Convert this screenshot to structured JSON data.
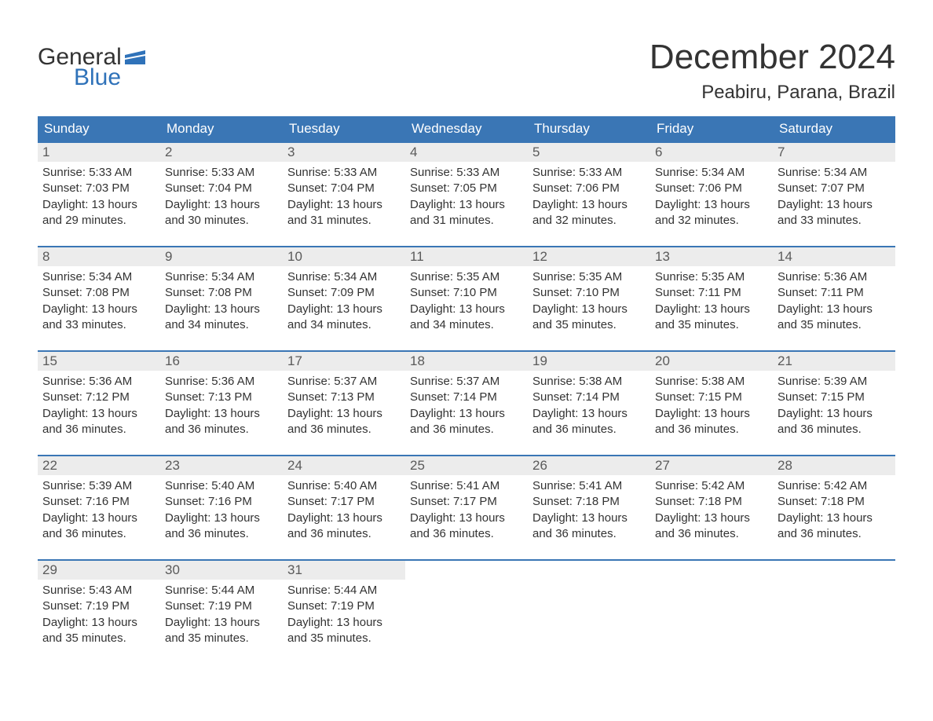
{
  "logo": {
    "word1": "General",
    "word2": "Blue",
    "flag_color": "#2f72b9"
  },
  "title": "December 2024",
  "location": "Peabiru, Parana, Brazil",
  "colors": {
    "header_bg": "#3a76b5",
    "header_text": "#ffffff",
    "daynum_bg": "#ececec",
    "daynum_text": "#5a5a5a",
    "body_text": "#333333",
    "rule": "#3a76b5",
    "logo_accent": "#2f72b9",
    "page_bg": "#ffffff"
  },
  "weekdays": [
    "Sunday",
    "Monday",
    "Tuesday",
    "Wednesday",
    "Thursday",
    "Friday",
    "Saturday"
  ],
  "weeks": [
    [
      {
        "n": "1",
        "sunrise": "Sunrise: 5:33 AM",
        "sunset": "Sunset: 7:03 PM",
        "day1": "Daylight: 13 hours",
        "day2": "and 29 minutes."
      },
      {
        "n": "2",
        "sunrise": "Sunrise: 5:33 AM",
        "sunset": "Sunset: 7:04 PM",
        "day1": "Daylight: 13 hours",
        "day2": "and 30 minutes."
      },
      {
        "n": "3",
        "sunrise": "Sunrise: 5:33 AM",
        "sunset": "Sunset: 7:04 PM",
        "day1": "Daylight: 13 hours",
        "day2": "and 31 minutes."
      },
      {
        "n": "4",
        "sunrise": "Sunrise: 5:33 AM",
        "sunset": "Sunset: 7:05 PM",
        "day1": "Daylight: 13 hours",
        "day2": "and 31 minutes."
      },
      {
        "n": "5",
        "sunrise": "Sunrise: 5:33 AM",
        "sunset": "Sunset: 7:06 PM",
        "day1": "Daylight: 13 hours",
        "day2": "and 32 minutes."
      },
      {
        "n": "6",
        "sunrise": "Sunrise: 5:34 AM",
        "sunset": "Sunset: 7:06 PM",
        "day1": "Daylight: 13 hours",
        "day2": "and 32 minutes."
      },
      {
        "n": "7",
        "sunrise": "Sunrise: 5:34 AM",
        "sunset": "Sunset: 7:07 PM",
        "day1": "Daylight: 13 hours",
        "day2": "and 33 minutes."
      }
    ],
    [
      {
        "n": "8",
        "sunrise": "Sunrise: 5:34 AM",
        "sunset": "Sunset: 7:08 PM",
        "day1": "Daylight: 13 hours",
        "day2": "and 33 minutes."
      },
      {
        "n": "9",
        "sunrise": "Sunrise: 5:34 AM",
        "sunset": "Sunset: 7:08 PM",
        "day1": "Daylight: 13 hours",
        "day2": "and 34 minutes."
      },
      {
        "n": "10",
        "sunrise": "Sunrise: 5:34 AM",
        "sunset": "Sunset: 7:09 PM",
        "day1": "Daylight: 13 hours",
        "day2": "and 34 minutes."
      },
      {
        "n": "11",
        "sunrise": "Sunrise: 5:35 AM",
        "sunset": "Sunset: 7:10 PM",
        "day1": "Daylight: 13 hours",
        "day2": "and 34 minutes."
      },
      {
        "n": "12",
        "sunrise": "Sunrise: 5:35 AM",
        "sunset": "Sunset: 7:10 PM",
        "day1": "Daylight: 13 hours",
        "day2": "and 35 minutes."
      },
      {
        "n": "13",
        "sunrise": "Sunrise: 5:35 AM",
        "sunset": "Sunset: 7:11 PM",
        "day1": "Daylight: 13 hours",
        "day2": "and 35 minutes."
      },
      {
        "n": "14",
        "sunrise": "Sunrise: 5:36 AM",
        "sunset": "Sunset: 7:11 PM",
        "day1": "Daylight: 13 hours",
        "day2": "and 35 minutes."
      }
    ],
    [
      {
        "n": "15",
        "sunrise": "Sunrise: 5:36 AM",
        "sunset": "Sunset: 7:12 PM",
        "day1": "Daylight: 13 hours",
        "day2": "and 36 minutes."
      },
      {
        "n": "16",
        "sunrise": "Sunrise: 5:36 AM",
        "sunset": "Sunset: 7:13 PM",
        "day1": "Daylight: 13 hours",
        "day2": "and 36 minutes."
      },
      {
        "n": "17",
        "sunrise": "Sunrise: 5:37 AM",
        "sunset": "Sunset: 7:13 PM",
        "day1": "Daylight: 13 hours",
        "day2": "and 36 minutes."
      },
      {
        "n": "18",
        "sunrise": "Sunrise: 5:37 AM",
        "sunset": "Sunset: 7:14 PM",
        "day1": "Daylight: 13 hours",
        "day2": "and 36 minutes."
      },
      {
        "n": "19",
        "sunrise": "Sunrise: 5:38 AM",
        "sunset": "Sunset: 7:14 PM",
        "day1": "Daylight: 13 hours",
        "day2": "and 36 minutes."
      },
      {
        "n": "20",
        "sunrise": "Sunrise: 5:38 AM",
        "sunset": "Sunset: 7:15 PM",
        "day1": "Daylight: 13 hours",
        "day2": "and 36 minutes."
      },
      {
        "n": "21",
        "sunrise": "Sunrise: 5:39 AM",
        "sunset": "Sunset: 7:15 PM",
        "day1": "Daylight: 13 hours",
        "day2": "and 36 minutes."
      }
    ],
    [
      {
        "n": "22",
        "sunrise": "Sunrise: 5:39 AM",
        "sunset": "Sunset: 7:16 PM",
        "day1": "Daylight: 13 hours",
        "day2": "and 36 minutes."
      },
      {
        "n": "23",
        "sunrise": "Sunrise: 5:40 AM",
        "sunset": "Sunset: 7:16 PM",
        "day1": "Daylight: 13 hours",
        "day2": "and 36 minutes."
      },
      {
        "n": "24",
        "sunrise": "Sunrise: 5:40 AM",
        "sunset": "Sunset: 7:17 PM",
        "day1": "Daylight: 13 hours",
        "day2": "and 36 minutes."
      },
      {
        "n": "25",
        "sunrise": "Sunrise: 5:41 AM",
        "sunset": "Sunset: 7:17 PM",
        "day1": "Daylight: 13 hours",
        "day2": "and 36 minutes."
      },
      {
        "n": "26",
        "sunrise": "Sunrise: 5:41 AM",
        "sunset": "Sunset: 7:18 PM",
        "day1": "Daylight: 13 hours",
        "day2": "and 36 minutes."
      },
      {
        "n": "27",
        "sunrise": "Sunrise: 5:42 AM",
        "sunset": "Sunset: 7:18 PM",
        "day1": "Daylight: 13 hours",
        "day2": "and 36 minutes."
      },
      {
        "n": "28",
        "sunrise": "Sunrise: 5:42 AM",
        "sunset": "Sunset: 7:18 PM",
        "day1": "Daylight: 13 hours",
        "day2": "and 36 minutes."
      }
    ],
    [
      {
        "n": "29",
        "sunrise": "Sunrise: 5:43 AM",
        "sunset": "Sunset: 7:19 PM",
        "day1": "Daylight: 13 hours",
        "day2": "and 35 minutes."
      },
      {
        "n": "30",
        "sunrise": "Sunrise: 5:44 AM",
        "sunset": "Sunset: 7:19 PM",
        "day1": "Daylight: 13 hours",
        "day2": "and 35 minutes."
      },
      {
        "n": "31",
        "sunrise": "Sunrise: 5:44 AM",
        "sunset": "Sunset: 7:19 PM",
        "day1": "Daylight: 13 hours",
        "day2": "and 35 minutes."
      },
      {
        "empty": true
      },
      {
        "empty": true
      },
      {
        "empty": true
      },
      {
        "empty": true
      }
    ]
  ]
}
